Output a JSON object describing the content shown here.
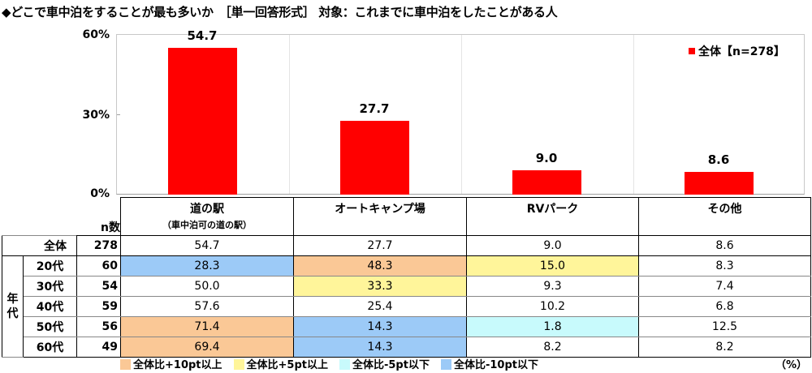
{
  "title": "◆どこで車中泊をすることが最も多いか　［単一回答形式］ 対象：これまでに車中泊をしたことがある人",
  "colors": {
    "bar": "#ff0000",
    "plus10": "#fac896",
    "plus5": "#fff59a",
    "minus5": "#c8fafc",
    "minus10": "#9ccaf7"
  },
  "chart_data": {
    "type": "bar",
    "title": "どこで車中泊をすることが最も多いか",
    "categories": [
      "道の駅（車中泊可の道の駅）",
      "オートキャンプ場",
      "RVパーク",
      "その他"
    ],
    "series": [
      {
        "name": "全体【n=278】",
        "values": [
          54.7,
          27.7,
          9.0,
          8.6
        ]
      }
    ],
    "ylabel": "%",
    "ylim": [
      0,
      60
    ],
    "yticks": [
      "0%",
      "30%",
      "60%"
    ],
    "grid": false,
    "legend_position": "top-right"
  },
  "axis": {
    "y60": "60%",
    "y30": "30%",
    "y0": "0%"
  },
  "legend": {
    "label": "全体【n=278】"
  },
  "bars": [
    {
      "label": "54.7",
      "value": 54.7
    },
    {
      "label": "27.7",
      "value": 27.7
    },
    {
      "label": "9.0",
      "value": 9.0
    },
    {
      "label": "8.6",
      "value": 8.6
    }
  ],
  "table": {
    "n_header": "n数",
    "group_label": "年代",
    "columns": [
      {
        "main": "道の駅",
        "sub": "（車中泊可の道の駅）"
      },
      {
        "main": "オートキャンプ場",
        "sub": ""
      },
      {
        "main": "RVパーク",
        "sub": ""
      },
      {
        "main": "その他",
        "sub": ""
      }
    ],
    "total": {
      "label": "全体",
      "n": "278",
      "values": [
        "54.7",
        "27.7",
        "9.0",
        "8.6"
      ]
    },
    "rows": [
      {
        "label": "20代",
        "n": "60",
        "values": [
          "28.3",
          "48.3",
          "15.0",
          "8.3"
        ],
        "hl": [
          "minus10",
          "plus10",
          "plus5",
          ""
        ]
      },
      {
        "label": "30代",
        "n": "54",
        "values": [
          "50.0",
          "33.3",
          "9.3",
          "7.4"
        ],
        "hl": [
          "",
          "plus5",
          "",
          ""
        ]
      },
      {
        "label": "40代",
        "n": "59",
        "values": [
          "57.6",
          "25.4",
          "10.2",
          "6.8"
        ],
        "hl": [
          "",
          "",
          "",
          ""
        ]
      },
      {
        "label": "50代",
        "n": "56",
        "values": [
          "71.4",
          "14.3",
          "1.8",
          "12.5"
        ],
        "hl": [
          "plus10",
          "minus10",
          "minus5",
          ""
        ]
      },
      {
        "label": "60代",
        "n": "49",
        "values": [
          "69.4",
          "14.3",
          "8.2",
          "8.2"
        ],
        "hl": [
          "plus10",
          "minus10",
          "",
          ""
        ]
      }
    ]
  },
  "bottom_legend": [
    {
      "key": "plus10",
      "label": "全体比+10pt以上"
    },
    {
      "key": "plus5",
      "label": "全体比+5pt以上"
    },
    {
      "key": "minus5",
      "label": "全体比-5pt以下"
    },
    {
      "key": "minus10",
      "label": "全体比-10pt以下"
    }
  ],
  "unit": "（%）"
}
